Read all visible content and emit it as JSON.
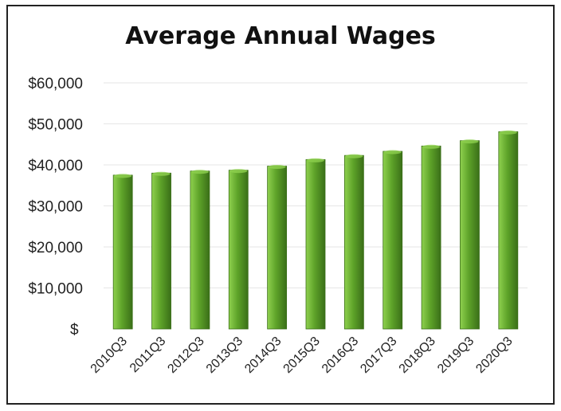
{
  "chart_data": {
    "type": "bar",
    "title": "Average Annual Wages",
    "xlabel": "",
    "ylabel": "",
    "categories": [
      "2010Q3",
      "2011Q3",
      "2012Q3",
      "2013Q3",
      "2014Q3",
      "2015Q3",
      "2016Q3",
      "2017Q3",
      "2018Q3",
      "2019Q3",
      "2020Q3"
    ],
    "values": [
      37500,
      38000,
      38500,
      38700,
      39700,
      41300,
      42300,
      43300,
      44600,
      45900,
      48100
    ],
    "ylim": [
      0,
      60000
    ],
    "yticks": [
      0,
      10000,
      20000,
      30000,
      40000,
      50000,
      60000
    ],
    "ytick_labels": [
      "$",
      "$10,000",
      "$20,000",
      "$30,000",
      "$40,000",
      "$50,000",
      "$60,000"
    ],
    "grid": true,
    "legend": "none",
    "colors": {
      "bar_light": "#8fd14f",
      "bar_mid": "#5ea329",
      "bar_dark": "#3a6f18",
      "grid": "#e6e6e6"
    }
  }
}
